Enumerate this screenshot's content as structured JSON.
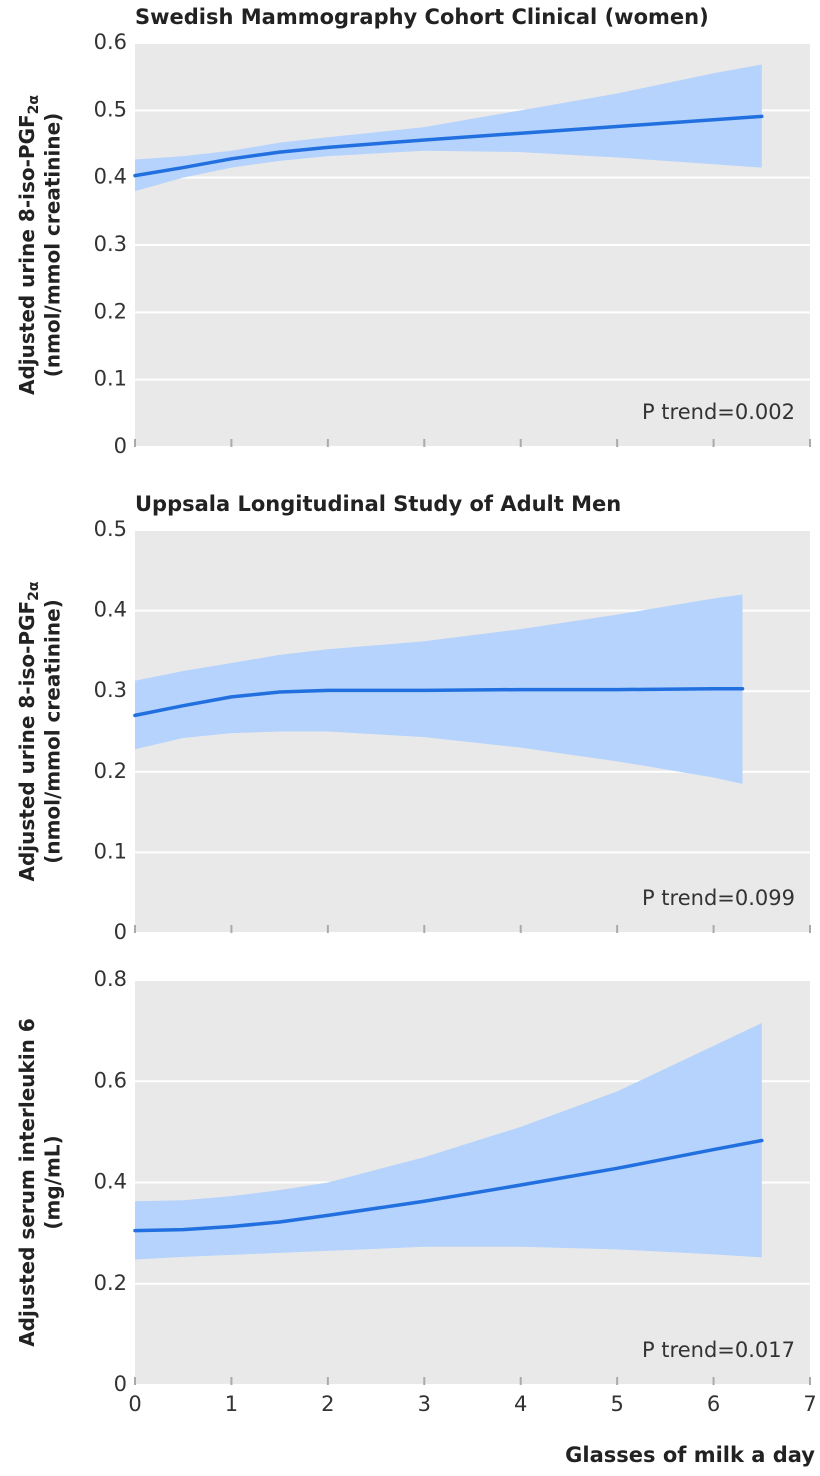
{
  "chart_data": [
    {
      "type": "line",
      "title": "Swedish Mammography Cohort Clinical (women)",
      "ylabel": [
        "Adjusted urine 8-iso-PGF",
        "(nmol/mmol creatinine)"
      ],
      "ylabel_subscript": "2α",
      "annotation": "P trend=0.002",
      "x": [
        0,
        0.5,
        1,
        1.5,
        2,
        3,
        4,
        5,
        6,
        6.5
      ],
      "series": [
        {
          "color": "#2270e0",
          "band_color": "#b5d3fc",
          "values": [
            0.403,
            0.415,
            0.428,
            0.438,
            0.445,
            0.456,
            0.466,
            0.476,
            0.486,
            0.491
          ],
          "upper": [
            0.427,
            0.432,
            0.44,
            0.452,
            0.46,
            0.475,
            0.5,
            0.525,
            0.555,
            0.568
          ],
          "lower": [
            0.38,
            0.4,
            0.415,
            0.425,
            0.432,
            0.44,
            0.438,
            0.43,
            0.42,
            0.415
          ]
        }
      ],
      "xlim": [
        0,
        7
      ],
      "ylim": [
        0,
        0.6
      ],
      "yticks": [
        0,
        0.1,
        0.2,
        0.3,
        0.4,
        0.5,
        0.6
      ],
      "grid": true
    },
    {
      "type": "line",
      "title": "Uppsala Longitudinal Study of Adult Men",
      "ylabel": [
        "Adjusted urine 8-iso-PGF",
        "(nmol/mmol creatinine)"
      ],
      "ylabel_subscript": "2α",
      "annotation": "P trend=0.099",
      "x": [
        0,
        0.5,
        1,
        1.5,
        2,
        3,
        4,
        5,
        6,
        6.3
      ],
      "series": [
        {
          "color": "#2270e0",
          "band_color": "#b5d3fc",
          "values": [
            0.27,
            0.282,
            0.293,
            0.299,
            0.301,
            0.301,
            0.302,
            0.302,
            0.303,
            0.303
          ],
          "upper": [
            0.313,
            0.325,
            0.335,
            0.345,
            0.352,
            0.362,
            0.377,
            0.395,
            0.415,
            0.42
          ],
          "lower": [
            0.228,
            0.242,
            0.248,
            0.25,
            0.25,
            0.243,
            0.23,
            0.213,
            0.193,
            0.185
          ]
        }
      ],
      "xlim": [
        0,
        7
      ],
      "ylim": [
        0,
        0.5
      ],
      "yticks": [
        0,
        0.1,
        0.2,
        0.3,
        0.4,
        0.5
      ],
      "grid": true
    },
    {
      "type": "line",
      "ylabel": [
        "Adjusted serum interleukin 6",
        "(mg/mL)"
      ],
      "annotation": "P trend=0.017",
      "xlabel": "Glasses of milk a day",
      "x": [
        0,
        0.5,
        1,
        1.5,
        2,
        3,
        4,
        5,
        6,
        6.5
      ],
      "series": [
        {
          "color": "#2270e0",
          "band_color": "#b5d3fc",
          "values": [
            0.305,
            0.307,
            0.313,
            0.322,
            0.335,
            0.363,
            0.395,
            0.428,
            0.465,
            0.483
          ],
          "upper": [
            0.363,
            0.365,
            0.373,
            0.385,
            0.4,
            0.45,
            0.51,
            0.58,
            0.67,
            0.715
          ],
          "lower": [
            0.248,
            0.253,
            0.257,
            0.261,
            0.265,
            0.273,
            0.273,
            0.268,
            0.258,
            0.252
          ]
        }
      ],
      "xlim": [
        0,
        7
      ],
      "xticks": [
        0,
        1,
        2,
        3,
        4,
        5,
        6,
        7
      ],
      "ylim": [
        0,
        0.8
      ],
      "yticks": [
        0,
        0.2,
        0.4,
        0.6,
        0.8
      ],
      "grid": true
    }
  ]
}
